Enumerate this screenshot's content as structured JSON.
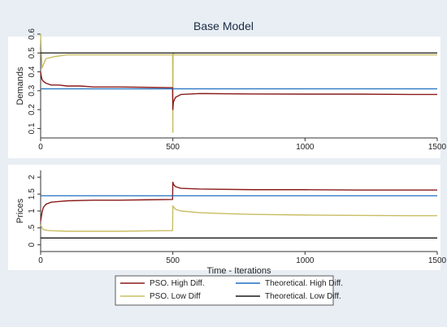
{
  "chart_data": [
    {
      "type": "line",
      "title": "Base Model",
      "xlabel": "",
      "ylabel": "Demands",
      "xlim": [
        0,
        1500
      ],
      "ylim": [
        0.05,
        0.6
      ],
      "xticks": [
        "0",
        "500",
        "1000",
        "1500"
      ],
      "yticks": [
        "0.1",
        "0.2",
        "0.3",
        "0.4",
        "0.5",
        "0.6"
      ],
      "grid": false,
      "series": [
        {
          "name": "PSO. High Diff.",
          "color": "#8b1a1a",
          "x": [
            0,
            2,
            5,
            10,
            20,
            40,
            70,
            100,
            150,
            200,
            300,
            400,
            499,
            500,
            502,
            510,
            530,
            600,
            800,
            1000,
            1200,
            1400,
            1500
          ],
          "y": [
            0.4,
            0.38,
            0.36,
            0.35,
            0.34,
            0.33,
            0.33,
            0.325,
            0.325,
            0.32,
            0.32,
            0.318,
            0.316,
            0.2,
            0.24,
            0.265,
            0.28,
            0.285,
            0.283,
            0.282,
            0.282,
            0.28,
            0.28
          ]
        },
        {
          "name": "PSO. Low Diff",
          "color": "#c8bd62",
          "x": [
            0,
            5,
            20,
            50,
            100,
            200,
            300,
            400,
            499,
            500,
            501,
            505,
            520,
            600,
            800,
            1000,
            1200,
            1400,
            1500
          ],
          "y": [
            0.6,
            0.42,
            0.47,
            0.48,
            0.49,
            0.49,
            0.49,
            0.49,
            0.49,
            0.08,
            0.5,
            0.49,
            0.49,
            0.49,
            0.49,
            0.49,
            0.49,
            0.49,
            0.49
          ]
        },
        {
          "name": "Theoretical. High Diff.",
          "color": "#1f6fbf",
          "x": [
            0,
            1500
          ],
          "y": [
            0.31,
            0.31
          ]
        },
        {
          "name": "Theoretical. Low Diff.",
          "color": "#1a1a1a",
          "x": [
            0,
            1500
          ],
          "y": [
            0.5,
            0.5
          ]
        }
      ]
    },
    {
      "type": "line",
      "title": "",
      "xlabel": "Time - Iterations",
      "ylabel": "Prices",
      "xlim": [
        0,
        1500
      ],
      "ylim": [
        -0.2,
        2.2
      ],
      "xticks": [
        "0",
        "500",
        "1000",
        "1500"
      ],
      "yticks": [
        "0",
        ".5",
        "1",
        "1.5",
        "2"
      ],
      "grid": false,
      "series": [
        {
          "name": "PSO. High Diff.",
          "color": "#8b1a1a",
          "x": [
            0,
            5,
            10,
            20,
            40,
            70,
            100,
            200,
            300,
            400,
            499,
            500,
            503,
            510,
            530,
            600,
            800,
            1000,
            1200,
            1400,
            1500
          ],
          "y": [
            0.7,
            0.95,
            1.1,
            1.2,
            1.26,
            1.28,
            1.3,
            1.32,
            1.32,
            1.33,
            1.34,
            1.85,
            1.78,
            1.72,
            1.67,
            1.65,
            1.63,
            1.63,
            1.62,
            1.62,
            1.62
          ]
        },
        {
          "name": "PSO. Low Diff",
          "color": "#c8bd62",
          "x": [
            0,
            5,
            10,
            30,
            60,
            100,
            200,
            300,
            400,
            499,
            500,
            510,
            530,
            600,
            700,
            800,
            1000,
            1200,
            1400,
            1500
          ],
          "y": [
            0.6,
            0.5,
            0.45,
            0.42,
            0.41,
            0.4,
            0.4,
            0.4,
            0.41,
            0.42,
            1.15,
            1.05,
            1.0,
            0.95,
            0.92,
            0.9,
            0.88,
            0.87,
            0.86,
            0.86
          ]
        },
        {
          "name": "Theoretical. High Diff.",
          "color": "#1f6fbf",
          "x": [
            0,
            1500
          ],
          "y": [
            1.45,
            1.45
          ]
        },
        {
          "name": "Theoretical. Low Diff.",
          "color": "#1a1a1a",
          "x": [
            0,
            1500
          ],
          "y": [
            0.2,
            0.2
          ]
        }
      ]
    }
  ],
  "legend": {
    "placement": "bottom",
    "items": [
      {
        "label": "PSO. High Diff.",
        "color": "#8b1a1a"
      },
      {
        "label": "Theoretical. High Diff.",
        "color": "#1f6fbf"
      },
      {
        "label": "PSO. Low Diff",
        "color": "#c8bd62"
      },
      {
        "label": "Theoretical. Low Diff.",
        "color": "#1a1a1a"
      }
    ]
  }
}
